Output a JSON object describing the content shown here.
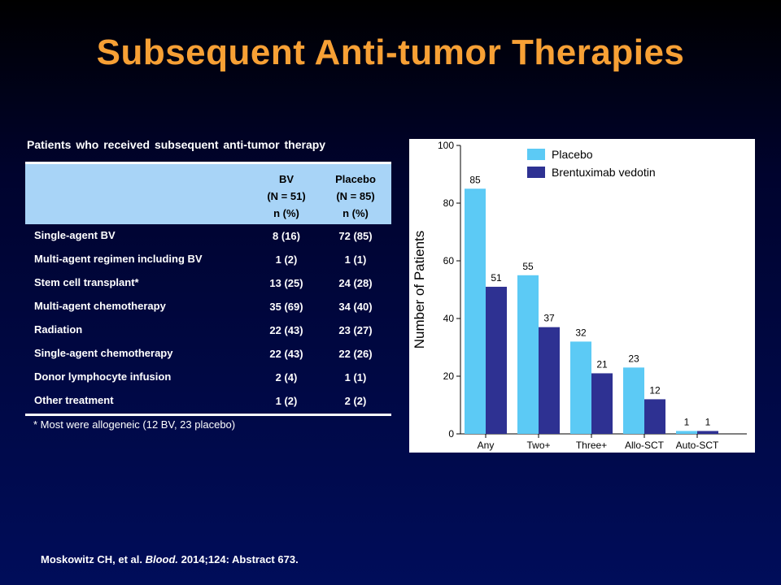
{
  "title": "Subsequent Anti-tumor Therapies",
  "table": {
    "caption": "Patients who received subsequent anti-tumor therapy",
    "columns": [
      {
        "lines": [
          "BV",
          "(N = 51)",
          "n (%)"
        ]
      },
      {
        "lines": [
          "Placebo",
          "(N = 85)",
          "n (%)"
        ]
      }
    ],
    "rows": [
      {
        "label": "Single-agent BV",
        "bv": "8 (16)",
        "placebo": "72 (85)"
      },
      {
        "label": "Multi-agent regimen including BV",
        "bv": "1 (2)",
        "placebo": "1 (1)"
      },
      {
        "label": "Stem cell transplant*",
        "bv": "13 (25)",
        "placebo": "24 (28)"
      },
      {
        "label": "Multi-agent chemotherapy",
        "bv": "35 (69)",
        "placebo": "34 (40)"
      },
      {
        "label": "Radiation",
        "bv": "22 (43)",
        "placebo": "23 (27)"
      },
      {
        "label": "Single-agent chemotherapy",
        "bv": "22 (43)",
        "placebo": "22 (26)"
      },
      {
        "label": "Donor lymphocyte infusion",
        "bv": "2 (4)",
        "placebo": "1 (1)"
      },
      {
        "label": "Other treatment",
        "bv": "1 (2)",
        "placebo": "2 (2)"
      }
    ],
    "footnote": "* Most were allogeneic (12 BV, 23 placebo)"
  },
  "chart_data": {
    "type": "bar",
    "categories": [
      "Any",
      "Two+",
      "Three+",
      "Allo-SCT",
      "Auto-SCT"
    ],
    "series": [
      {
        "name": "Placebo",
        "color": "#5ccaf5",
        "values": [
          85,
          55,
          32,
          23,
          1
        ]
      },
      {
        "name": "Brentuximab vedotin",
        "color": "#2e3192",
        "values": [
          51,
          37,
          21,
          12,
          1
        ]
      }
    ],
    "ylabel": "Number of Patients",
    "yticks": [
      0,
      20,
      40,
      60,
      80,
      100
    ],
    "ylim": [
      0,
      100
    ],
    "grid": false,
    "legend": "top-right"
  },
  "citation": {
    "before": "Moskowitz CH, et al. ",
    "journal": "Blood.",
    "after": " 2014;124: Abstract 673."
  },
  "colors": {
    "title": "#f7a035",
    "header_bg": "#a8d4f7"
  }
}
